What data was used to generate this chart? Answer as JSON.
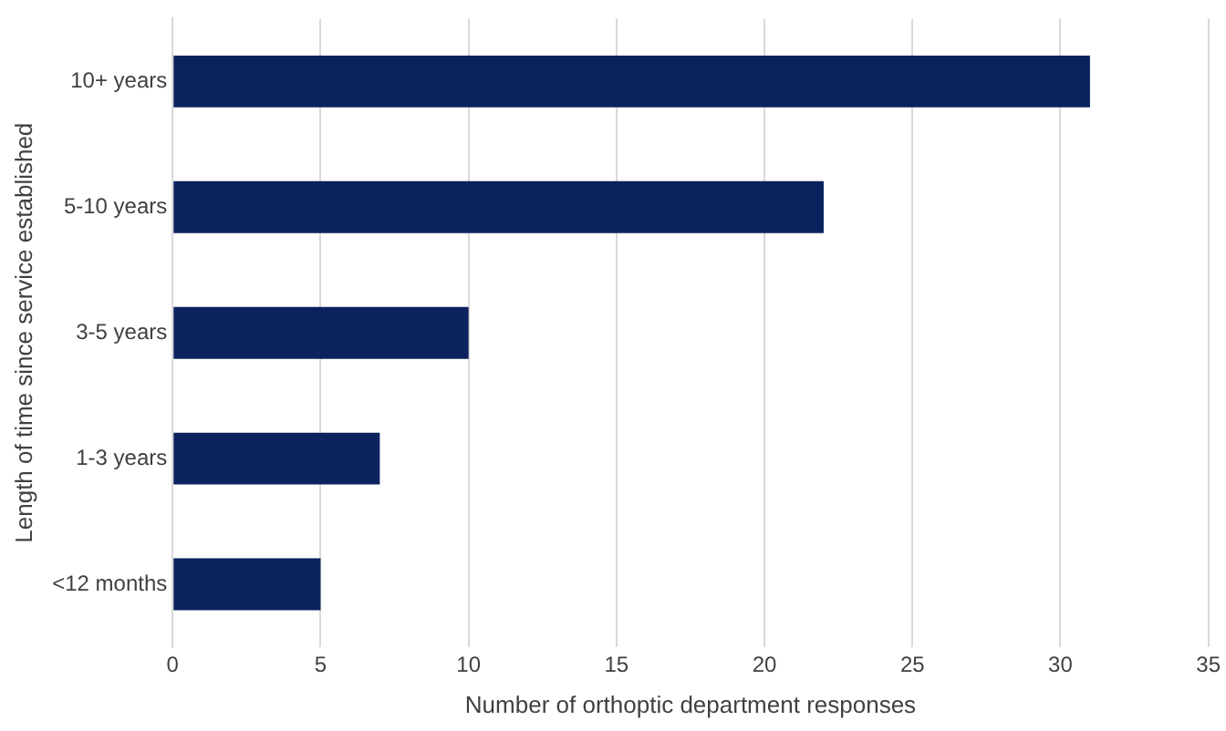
{
  "chart_data": {
    "type": "bar",
    "orientation": "horizontal",
    "xlabel": "Number of orthoptic department responses",
    "ylabel": "Length of time since service established",
    "categories": [
      "10+ years",
      "5-10 years",
      "3-5 years",
      "1-3 years",
      "<12 months"
    ],
    "values": [
      31,
      22,
      10,
      7,
      5
    ],
    "color": "#0b225e",
    "xlim": [
      0,
      35
    ],
    "xticks": [
      0,
      5,
      10,
      15,
      20,
      25,
      30,
      35
    ],
    "grid": "x",
    "legend": false
  }
}
